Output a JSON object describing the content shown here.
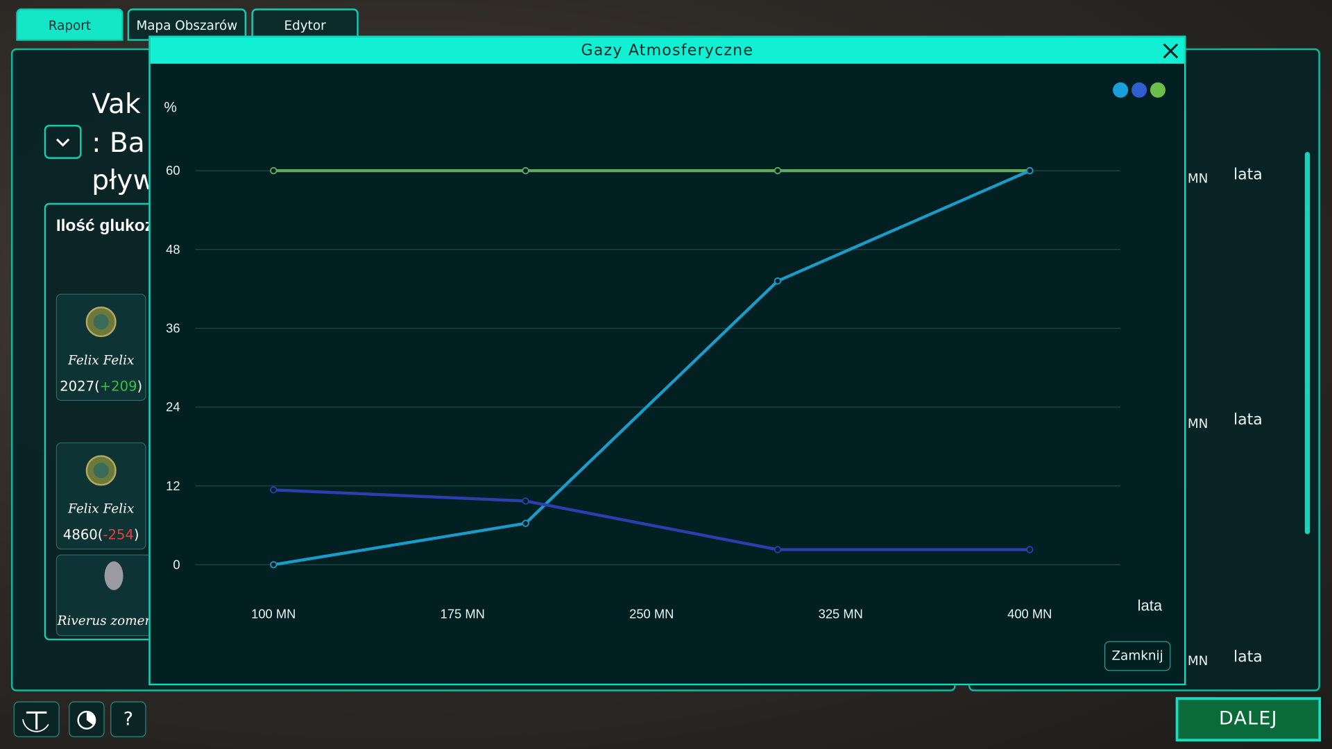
{
  "tabs": [
    "Raport",
    "Mapa Obszarów",
    "Edytor"
  ],
  "left_panel": {
    "title_lines": [
      "Vak",
      ": Ba",
      "pływ"
    ],
    "section_title": "Ilość glukoz",
    "cards": [
      {
        "name": "Felix Felix",
        "value": "2027(",
        "delta": "+209",
        "tail": ")"
      },
      {
        "name": "Felix Felix",
        "value": "4860(",
        "delta": "-254",
        "tail": ")"
      },
      {
        "name": "Riverus zomem"
      }
    ]
  },
  "right_panel": {
    "rows": [
      {
        "unit": "MN",
        "axis": "lata"
      },
      {
        "unit": "MN",
        "axis": "lata"
      },
      {
        "unit": "MN",
        "axis": "lata"
      }
    ]
  },
  "modal": {
    "title": "Gazy Atmosferyczne",
    "close_button": "Zamknij"
  },
  "chart_data": {
    "type": "line",
    "y_label": "%",
    "x_label": "lata",
    "x": [
      100,
      200,
      300,
      400
    ],
    "series": [
      {
        "color": "#5fae5f",
        "values": [
          60,
          60,
          60,
          60
        ]
      },
      {
        "color": "#1a9cc8",
        "values": [
          0,
          6.3,
          43.2,
          60
        ]
      },
      {
        "color": "#2b3fb0",
        "values": [
          11.4,
          9.7,
          2.3,
          2.3
        ]
      }
    ],
    "xlim": [
      69,
      436
    ],
    "xticks": [
      {
        "value": 100,
        "label": "100 MN"
      },
      {
        "value": 175,
        "label": "175 MN"
      },
      {
        "value": 250,
        "label": "250 MN"
      },
      {
        "value": 325,
        "label": "325 MN"
      },
      {
        "value": 400,
        "label": "400 MN"
      }
    ],
    "ylim": [
      0,
      60
    ],
    "yticks": [
      0,
      12,
      24,
      36,
      48,
      60
    ],
    "grid": true
  },
  "footer": {
    "help": "?",
    "next": "DALEJ"
  }
}
